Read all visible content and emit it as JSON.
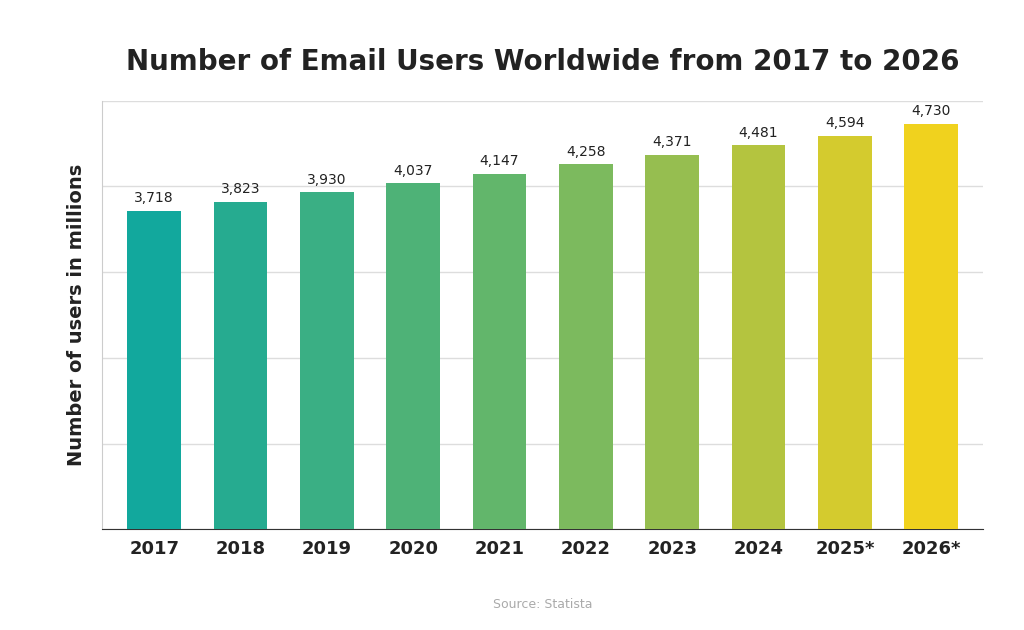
{
  "chart_data": {
    "type": "bar",
    "title": "Number of Email Users Worldwide from 2017 to 2026",
    "y_label": "Number of users in millions",
    "annotation": "Source: Statista",
    "categories": [
      "2017",
      "2018",
      "2019",
      "2020",
      "2021",
      "2022",
      "2023",
      "2024",
      "2025*",
      "2026*"
    ],
    "values": [
      3718,
      3823,
      3930,
      4037,
      4147,
      4258,
      4371,
      4481,
      4594,
      4730
    ],
    "value_labels": [
      "3,718",
      "3,823",
      "3,930",
      "4,037",
      "4,147",
      "4,258",
      "4,371",
      "4,481",
      "4,594",
      "4,730"
    ],
    "colors": [
      "#12a89d",
      "#26ab90",
      "#3aaf84",
      "#4eb277",
      "#62b66b",
      "#7cba5e",
      "#96be50",
      "#b4c43f",
      "#d4cb2e",
      "#f0d21e"
    ],
    "ylim": [
      0,
      5000
    ],
    "yticks": [
      0,
      1000,
      2000,
      3000,
      4000,
      5000
    ],
    "grid": true,
    "data_labels": true,
    "tick_labels": "x"
  }
}
